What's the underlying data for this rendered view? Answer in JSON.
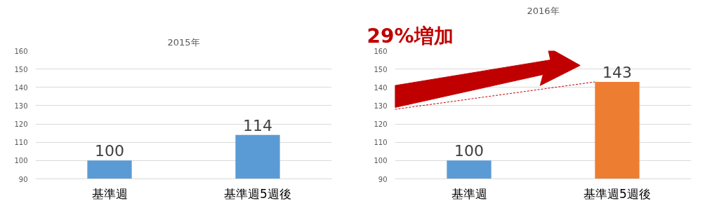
{
  "chart_data": [
    {
      "type": "bar",
      "title": "2015年",
      "categories": [
        "基準週",
        "基準週5週後"
      ],
      "values": [
        100,
        114
      ],
      "colors": [
        "#5b9bd5",
        "#5b9bd5"
      ],
      "ylim": [
        90,
        160
      ],
      "yticks": [
        90,
        100,
        110,
        120,
        130,
        140,
        150,
        160
      ],
      "grid": "y",
      "data_labels": true
    },
    {
      "type": "bar",
      "title": "2016年",
      "categories": [
        "基準週",
        "基準週5週後"
      ],
      "values": [
        100,
        143
      ],
      "colors": [
        "#5b9bd5",
        "#ed7d31"
      ],
      "ylim": [
        90,
        160
      ],
      "yticks": [
        90,
        100,
        110,
        120,
        130,
        140,
        150,
        160
      ],
      "grid": "y",
      "data_labels": true,
      "annotations": [
        "29%増加"
      ]
    }
  ]
}
